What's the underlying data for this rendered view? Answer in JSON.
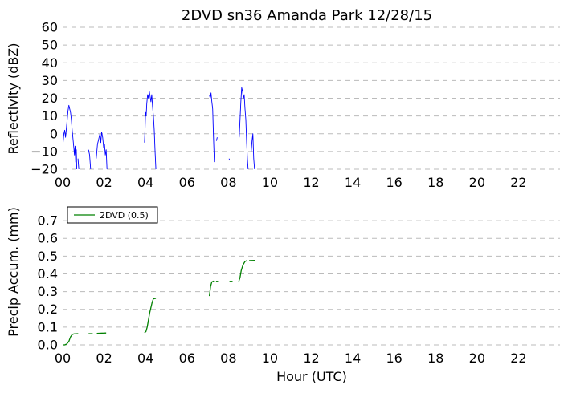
{
  "chart_data": [
    {
      "type": "line",
      "title": "2DVD sn36 Amanda Park 12/28/15",
      "xlabel": "",
      "ylabel": "Reflectivity (dBZ)",
      "xlim": [
        0,
        24
      ],
      "ylim": [
        -20,
        60
      ],
      "x_ticks": [
        "00",
        "02",
        "04",
        "06",
        "08",
        "10",
        "12",
        "14",
        "16",
        "18",
        "20",
        "22"
      ],
      "y_ticks": [
        "−20",
        "−10",
        "0",
        "10",
        "20",
        "30",
        "40",
        "50",
        "60"
      ],
      "grid": "horizontal dashed",
      "series": [
        {
          "color": "#0000ff",
          "segments": [
            [
              [
                0.02,
                -5
              ],
              [
                0.06,
                0
              ],
              [
                0.1,
                2
              ],
              [
                0.14,
                -2
              ],
              [
                0.18,
                3
              ],
              [
                0.22,
                8
              ],
              [
                0.26,
                13
              ],
              [
                0.3,
                16
              ],
              [
                0.34,
                14
              ],
              [
                0.38,
                12
              ],
              [
                0.42,
                8
              ],
              [
                0.46,
                2
              ],
              [
                0.5,
                -3
              ],
              [
                0.54,
                -8
              ],
              [
                0.57,
                -12
              ],
              [
                0.6,
                -7
              ],
              [
                0.63,
                -16
              ],
              [
                0.66,
                -9
              ],
              [
                0.68,
                -20
              ]
            ],
            [
              [
                0.74,
                -14
              ],
              [
                0.78,
                -20
              ]
            ],
            [
              [
                1.25,
                -9
              ],
              [
                1.3,
                -12
              ],
              [
                1.35,
                -20
              ]
            ],
            [
              [
                1.62,
                -14
              ],
              [
                1.68,
                -6
              ],
              [
                1.74,
                -3
              ],
              [
                1.8,
                0
              ],
              [
                1.84,
                -5
              ],
              [
                1.88,
                1
              ],
              [
                1.93,
                -2
              ],
              [
                1.98,
                -8
              ],
              [
                2.02,
                -6
              ],
              [
                2.06,
                -12
              ],
              [
                2.1,
                -9
              ],
              [
                2.14,
                -20
              ]
            ],
            [
              [
                3.95,
                -5
              ],
              [
                3.98,
                4
              ],
              [
                4.0,
                12
              ],
              [
                4.03,
                10
              ],
              [
                4.06,
                17
              ],
              [
                4.1,
                22
              ],
              [
                4.14,
                20
              ],
              [
                4.18,
                24
              ],
              [
                4.22,
                21
              ],
              [
                4.26,
                18
              ],
              [
                4.3,
                22
              ],
              [
                4.34,
                15
              ],
              [
                4.38,
                10
              ],
              [
                4.42,
                2
              ],
              [
                4.46,
                -10
              ],
              [
                4.5,
                -20
              ]
            ],
            [
              [
                7.08,
                22
              ],
              [
                7.12,
                20
              ],
              [
                7.16,
                23
              ],
              [
                7.2,
                18
              ],
              [
                7.24,
                14
              ],
              [
                7.28,
                -2
              ],
              [
                7.32,
                -16
              ]
            ],
            [
              [
                7.42,
                -4
              ],
              [
                7.46,
                -2
              ]
            ],
            [
              [
                8.03,
                -14
              ],
              [
                8.06,
                -15
              ]
            ],
            [
              [
                8.52,
                -2
              ],
              [
                8.56,
                8
              ],
              [
                8.6,
                18
              ],
              [
                8.64,
                26
              ],
              [
                8.68,
                24
              ],
              [
                8.72,
                20
              ],
              [
                8.76,
                22
              ],
              [
                8.8,
                14
              ],
              [
                8.84,
                8
              ],
              [
                8.88,
                -5
              ],
              [
                8.92,
                -15
              ],
              [
                8.95,
                -20
              ]
            ],
            [
              [
                9.1,
                -10
              ],
              [
                9.14,
                -4
              ],
              [
                9.18,
                0
              ],
              [
                9.22,
                -14
              ],
              [
                9.26,
                -20
              ]
            ]
          ]
        }
      ]
    },
    {
      "type": "line",
      "title": "",
      "xlabel": "Hour (UTC)",
      "ylabel": "Precip Accum. (mm)",
      "xlim": [
        0,
        24
      ],
      "ylim": [
        0,
        0.75
      ],
      "x_ticks": [
        "00",
        "02",
        "04",
        "06",
        "08",
        "10",
        "12",
        "14",
        "16",
        "18",
        "20",
        "22"
      ],
      "y_ticks": [
        "0.0",
        "0.1",
        "0.2",
        "0.3",
        "0.4",
        "0.5",
        "0.6",
        "0.7"
      ],
      "grid": "horizontal dashed",
      "legend": "top-left",
      "series": [
        {
          "name": "2DVD (0.5)",
          "color": "#008000",
          "segments": [
            [
              [
                0.0,
                0.0
              ],
              [
                0.1,
                0.0
              ],
              [
                0.2,
                0.005
              ],
              [
                0.3,
                0.02
              ],
              [
                0.38,
                0.045
              ],
              [
                0.46,
                0.058
              ],
              [
                0.55,
                0.062
              ],
              [
                0.75,
                0.063
              ]
            ],
            [
              [
                1.25,
                0.063
              ],
              [
                1.45,
                0.063
              ]
            ],
            [
              [
                1.65,
                0.065
              ],
              [
                2.1,
                0.067
              ]
            ],
            [
              [
                3.95,
                0.068
              ],
              [
                4.02,
                0.075
              ],
              [
                4.08,
                0.1
              ],
              [
                4.14,
                0.14
              ],
              [
                4.2,
                0.18
              ],
              [
                4.26,
                0.21
              ],
              [
                4.32,
                0.24
              ],
              [
                4.38,
                0.26
              ],
              [
                4.5,
                0.262
              ]
            ],
            [
              [
                7.08,
                0.275
              ],
              [
                7.14,
                0.33
              ],
              [
                7.2,
                0.355
              ],
              [
                7.3,
                0.36
              ]
            ],
            [
              [
                7.4,
                0.358
              ],
              [
                7.5,
                0.358
              ]
            ],
            [
              [
                8.05,
                0.358
              ],
              [
                8.2,
                0.358
              ]
            ],
            [
              [
                8.5,
                0.358
              ],
              [
                8.56,
                0.38
              ],
              [
                8.62,
                0.42
              ],
              [
                8.7,
                0.45
              ],
              [
                8.8,
                0.47
              ],
              [
                8.9,
                0.475
              ]
            ],
            [
              [
                9.0,
                0.475
              ],
              [
                9.3,
                0.476
              ]
            ]
          ]
        }
      ]
    }
  ]
}
